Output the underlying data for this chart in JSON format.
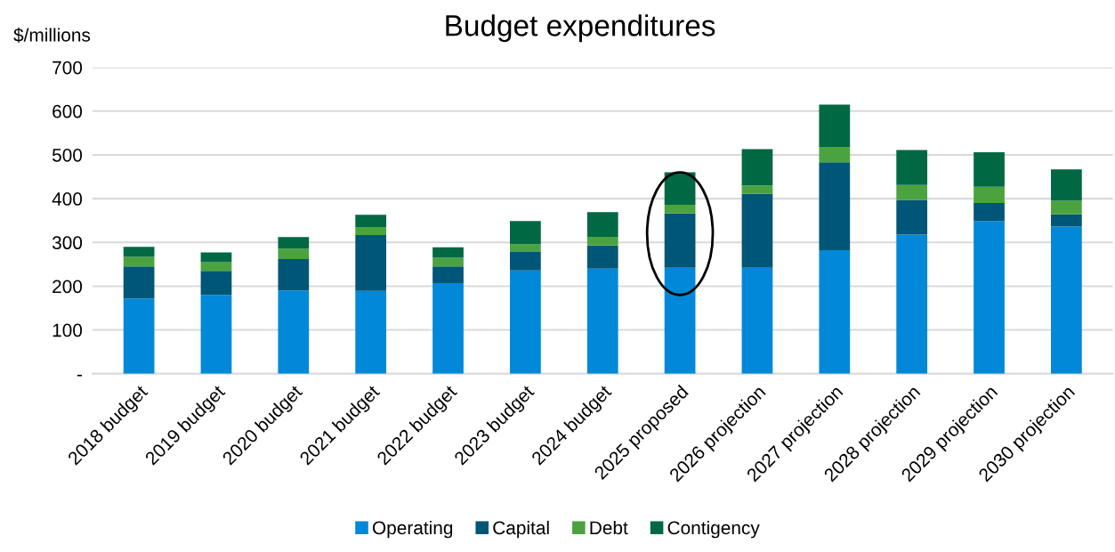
{
  "chart_data": {
    "type": "bar",
    "title": "Budget expenditures",
    "ylabel": "$/millions",
    "stacked": true,
    "categories": [
      "2018 budget",
      "2019 budget",
      "2020 budget",
      "2021 budget",
      "2022 budget",
      "2023 budget",
      "2024 budget",
      "2025 proposed",
      "2026 projection",
      "2027 projection",
      "2028 projection",
      "2029 projection",
      "2030 projection"
    ],
    "series": [
      {
        "name": "Operating",
        "color": "#0288d8",
        "values": [
          172,
          180,
          190,
          189,
          207,
          236,
          240,
          242,
          242,
          282,
          318,
          349,
          336
        ]
      },
      {
        "name": "Capital",
        "color": "#005677",
        "values": [
          73,
          55,
          72,
          128,
          38,
          42,
          53,
          124,
          169,
          201,
          79,
          41,
          28
        ]
      },
      {
        "name": "Debt",
        "color": "#4ba33f",
        "values": [
          22,
          20,
          24,
          18,
          20,
          18,
          20,
          20,
          19,
          35,
          34,
          37,
          31
        ]
      },
      {
        "name": "Contigency",
        "color": "#006943",
        "values": [
          23,
          22,
          26,
          28,
          24,
          53,
          56,
          74,
          83,
          97,
          80,
          79,
          72
        ]
      }
    ],
    "ylim": [
      0,
      700
    ],
    "yticks": [
      {
        "value": 0,
        "label": "-"
      },
      100,
      200,
      300,
      400,
      500,
      600,
      700
    ],
    "grid": "y",
    "legend": "bottom"
  }
}
